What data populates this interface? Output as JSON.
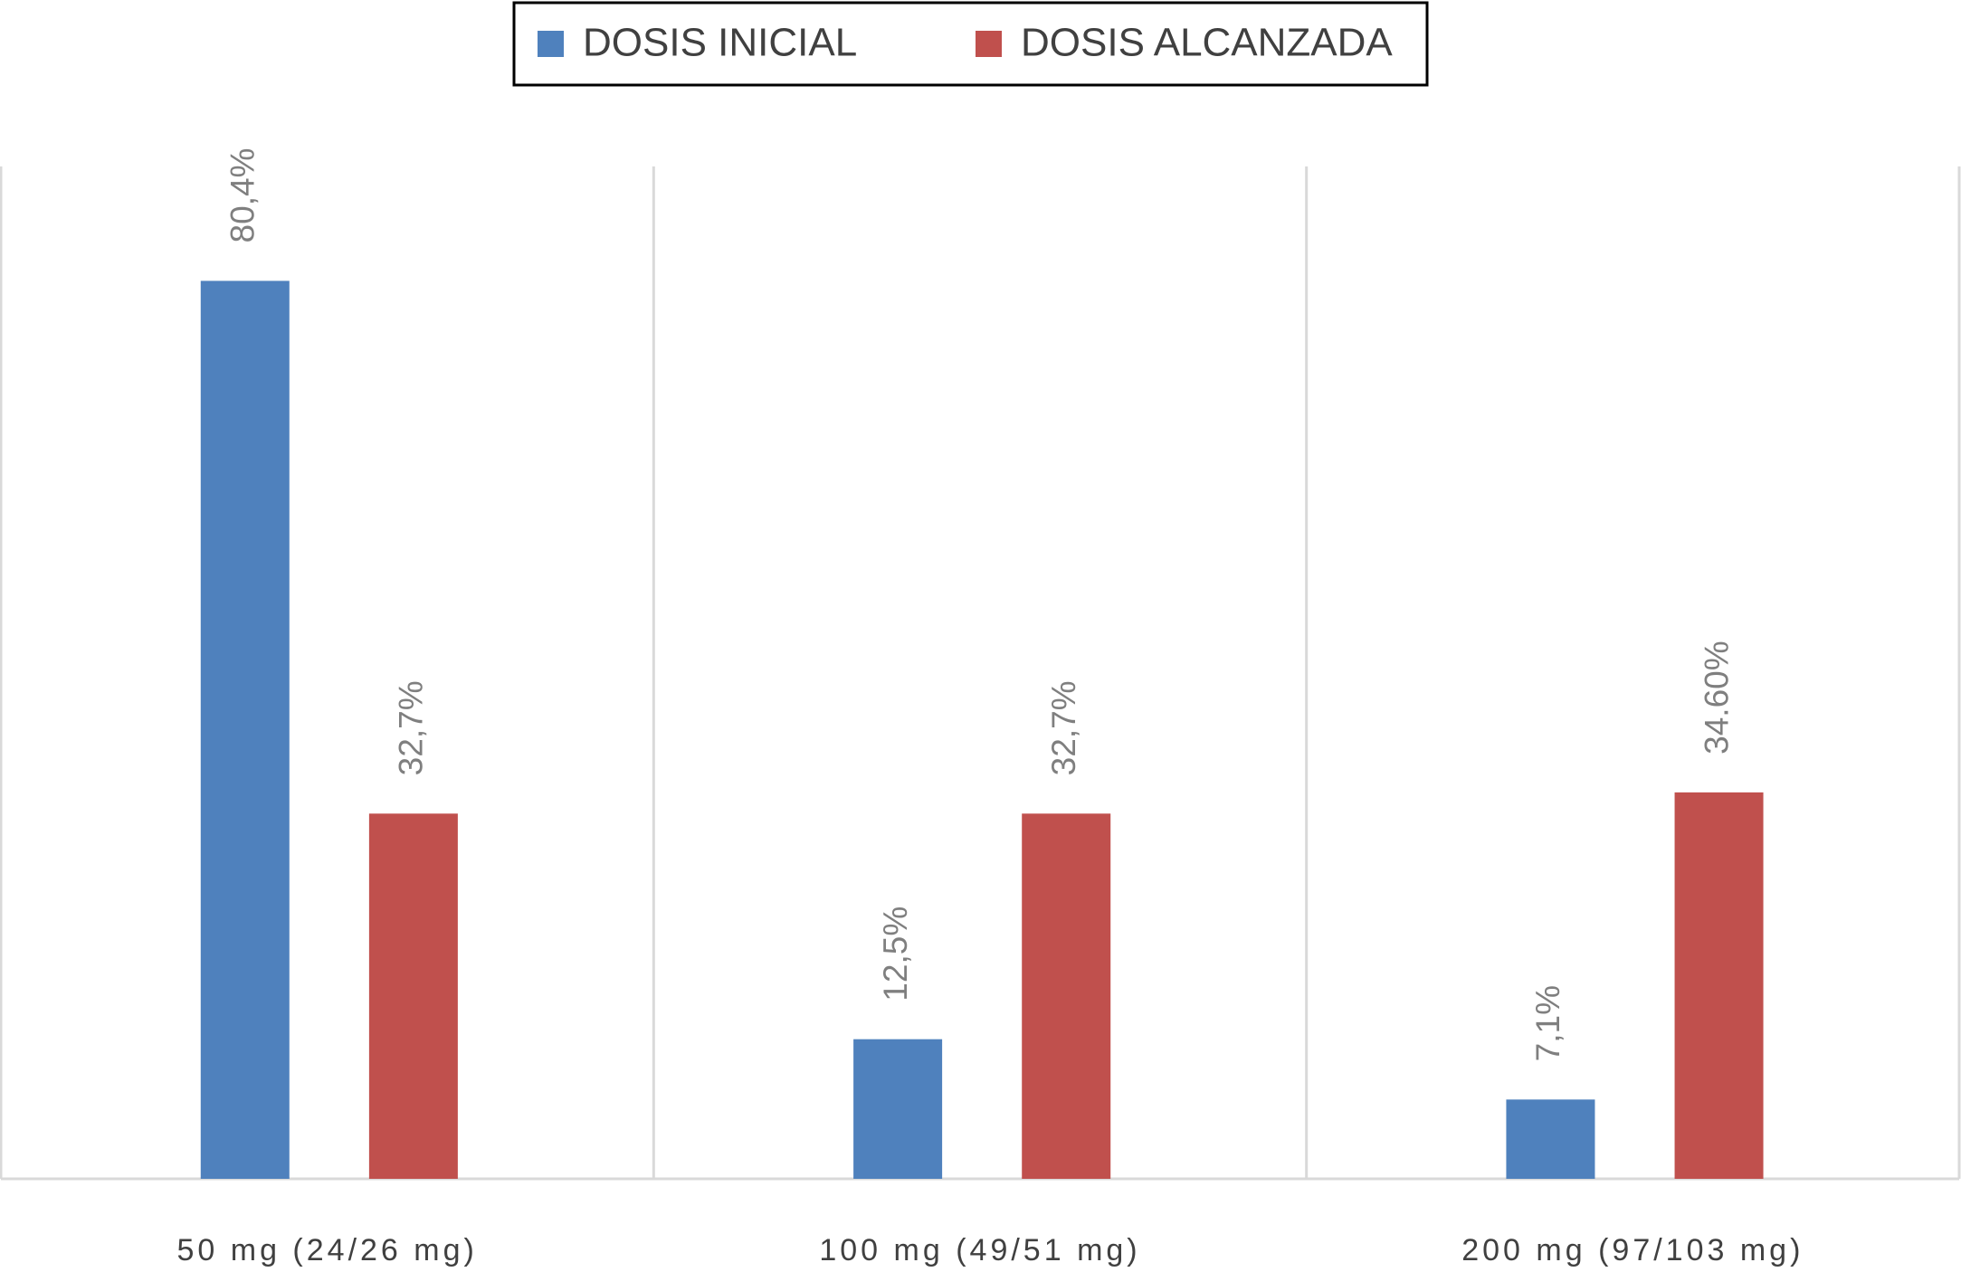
{
  "chart_data": {
    "type": "bar",
    "categories": [
      "50 mg (24/26 mg)",
      "100 mg (49/51 mg)",
      "200 mg (97/103 mg)"
    ],
    "series": [
      {
        "name": "DOSIS INICIAL",
        "color": "#4f81bd",
        "values": [
          80.4,
          12.5,
          7.1
        ],
        "value_labels": [
          "80,4%",
          "12,5%",
          "7,1%"
        ]
      },
      {
        "name": "DOSIS ALCANZADA",
        "color": "#c0504d",
        "values": [
          32.7,
          32.7,
          34.6
        ],
        "value_labels": [
          "32,7%",
          "32,7%",
          "34.60%"
        ]
      }
    ],
    "legend": "top"
  }
}
